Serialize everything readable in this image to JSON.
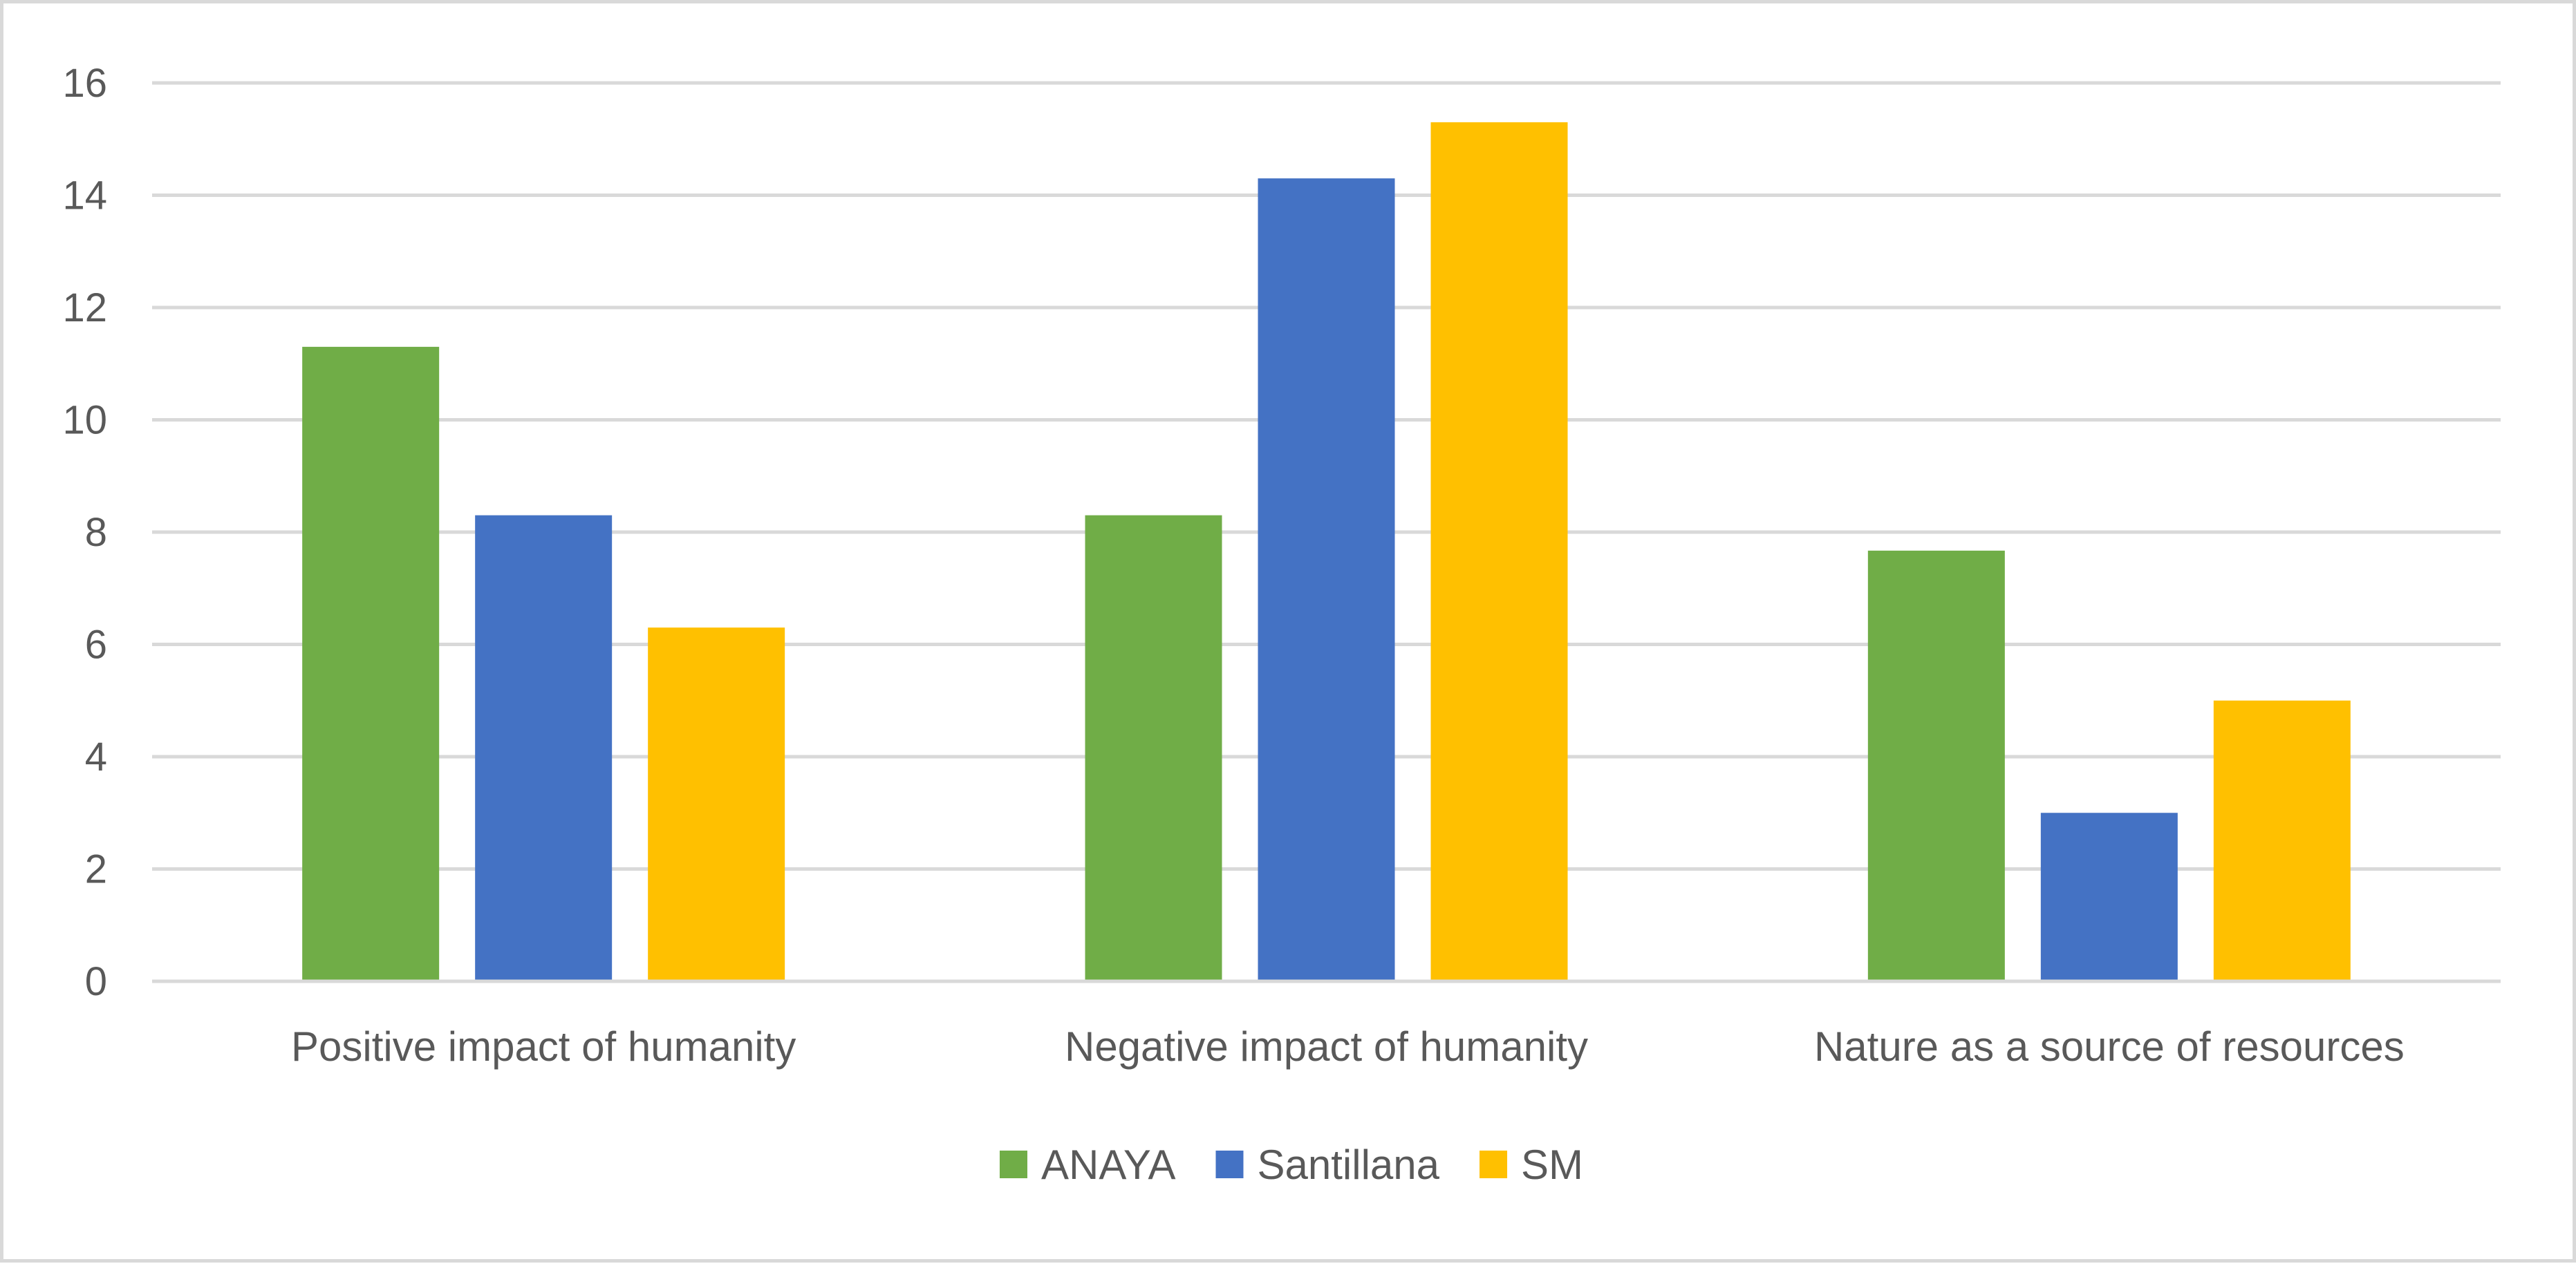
{
  "chart_data": {
    "type": "bar",
    "title": "",
    "xlabel": "",
    "ylabel": "",
    "categories": [
      "Positive impact of humanity",
      "Negative impact of humanity",
      "Nature as a source of resources"
    ],
    "series": [
      {
        "name": "ANAYA",
        "color": "#70ad47",
        "values": [
          11.3,
          8.3,
          7.67
        ]
      },
      {
        "name": "Santillana",
        "color": "#4472c4",
        "values": [
          8.3,
          14.3,
          3.0
        ]
      },
      {
        "name": "SM",
        "color": "#ffc000",
        "values": [
          6.3,
          15.3,
          5.0
        ]
      }
    ],
    "ylim": [
      0,
      16
    ],
    "yticks": [
      "0",
      "2",
      "4",
      "6",
      "8",
      "10",
      "12",
      "14",
      "16"
    ],
    "grid": true,
    "legend_position": "bottom"
  }
}
